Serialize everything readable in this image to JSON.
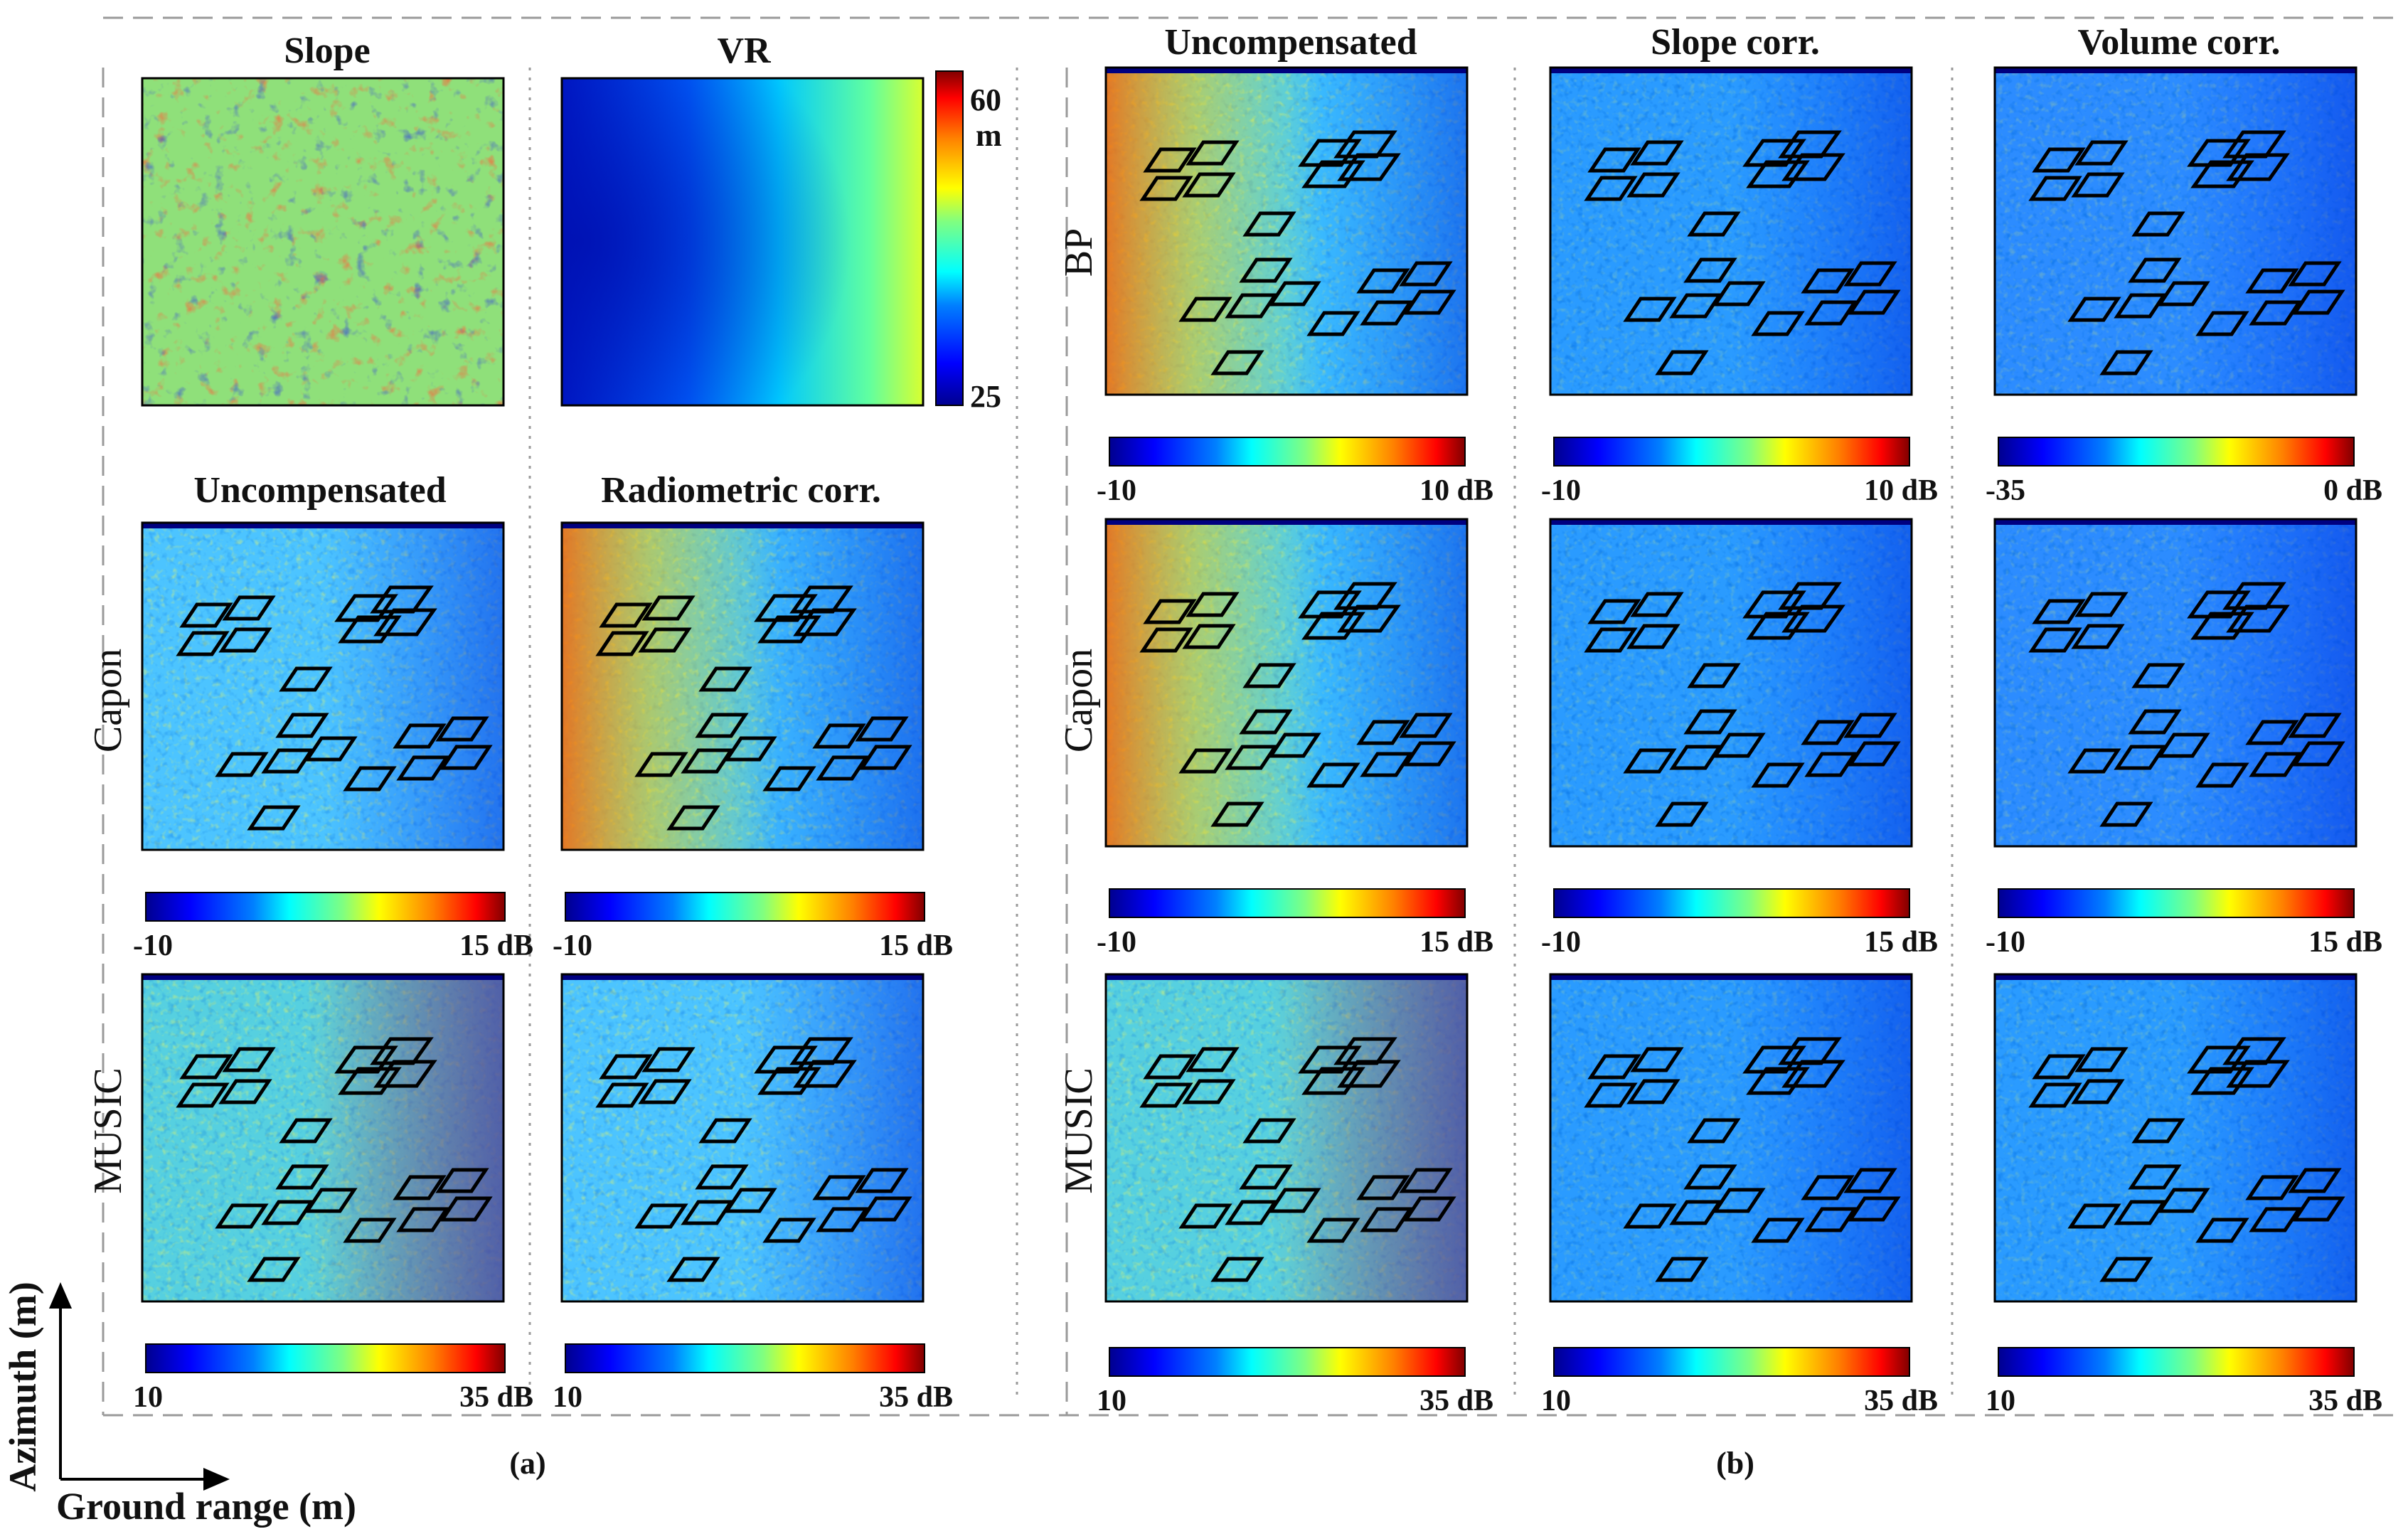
{
  "panel_a": {
    "caption": "(a)",
    "column_titles": [
      "Slope",
      "VR"
    ],
    "compensation_titles": [
      "Uncompensated",
      "Radiometric corr."
    ],
    "row_labels": [
      "Capon",
      "MUSIC"
    ],
    "vr_colorbar": {
      "max": "60",
      "unit": "m",
      "min": "25"
    },
    "capon_colorbars": [
      {
        "min": "-10",
        "max": "15 dB"
      },
      {
        "min": "-10",
        "max": "15 dB"
      }
    ],
    "music_colorbars": [
      {
        "min": "10",
        "max": "35 dB"
      },
      {
        "min": "10",
        "max": "35 dB"
      }
    ]
  },
  "panel_b": {
    "caption": "(b)",
    "column_titles": [
      "Uncompensated",
      "Slope corr.",
      "Volume corr."
    ],
    "row_labels": [
      "BP",
      "Capon",
      "MUSIC"
    ],
    "bp_colorbars": [
      {
        "min": "-10",
        "max": "10 dB"
      },
      {
        "min": "-10",
        "max": "10 dB"
      },
      {
        "min": "-35",
        "max": "0 dB"
      }
    ],
    "capon_colorbars": [
      {
        "min": "-10",
        "max": "15 dB"
      },
      {
        "min": "-10",
        "max": "15 dB"
      },
      {
        "min": "-10",
        "max": "15 dB"
      }
    ],
    "music_colorbars": [
      {
        "min": "10",
        "max": "35 dB"
      },
      {
        "min": "10",
        "max": "35 dB"
      },
      {
        "min": "10",
        "max": "35 dB"
      }
    ]
  },
  "axes": {
    "y_label": "Azimuth (m)",
    "x_label": "Ground range (m)"
  },
  "colors": {
    "jet": [
      "#00008f",
      "#0000ff",
      "#0080ff",
      "#00ffff",
      "#80ff80",
      "#ffff00",
      "#ff8000",
      "#ff0000",
      "#800000"
    ],
    "frame": "#000000",
    "dashed_border": "#9a9a9a"
  }
}
